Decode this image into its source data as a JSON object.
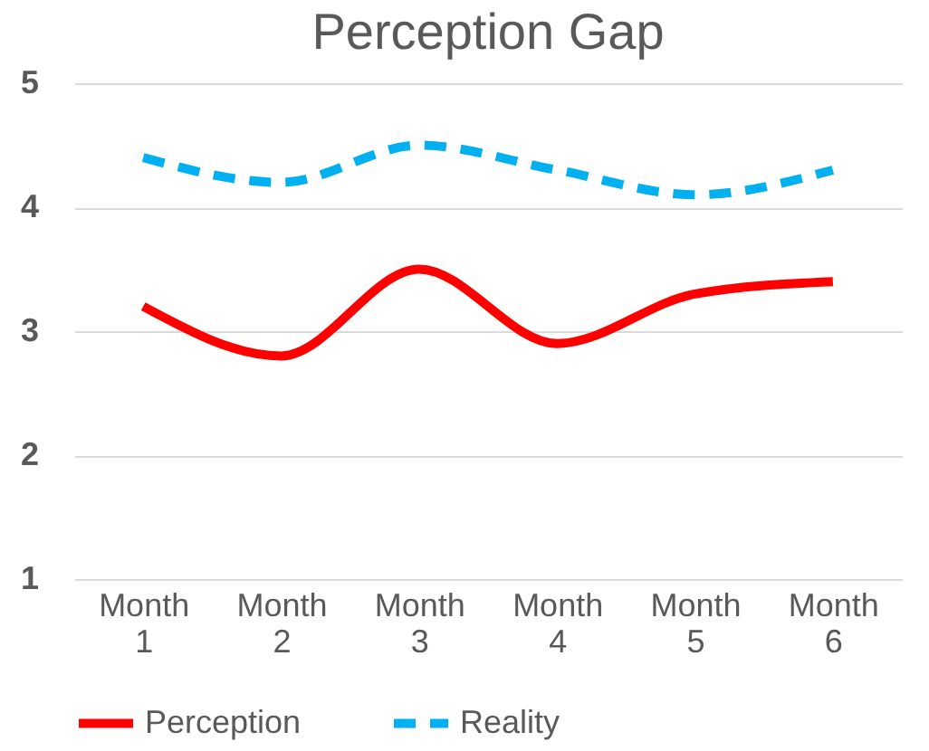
{
  "chart_data": {
    "type": "line",
    "title": "Perception Gap",
    "categories": [
      "Month 1",
      "Month 2",
      "Month 3",
      "Month 4",
      "Month 5",
      "Month 6"
    ],
    "series": [
      {
        "name": "Perception",
        "color": "#ff0000",
        "line_style": "solid",
        "values": [
          3.2,
          2.8,
          3.5,
          2.9,
          3.3,
          3.4
        ]
      },
      {
        "name": "Reality",
        "color": "#00b0f0",
        "line_style": "dashed",
        "values": [
          4.4,
          4.2,
          4.5,
          4.3,
          4.1,
          4.3
        ]
      }
    ],
    "ylim": [
      1,
      5
    ],
    "yticks": [
      1,
      2,
      3,
      4,
      5
    ],
    "grid": "y",
    "legend": "bottom",
    "marker": "none"
  }
}
